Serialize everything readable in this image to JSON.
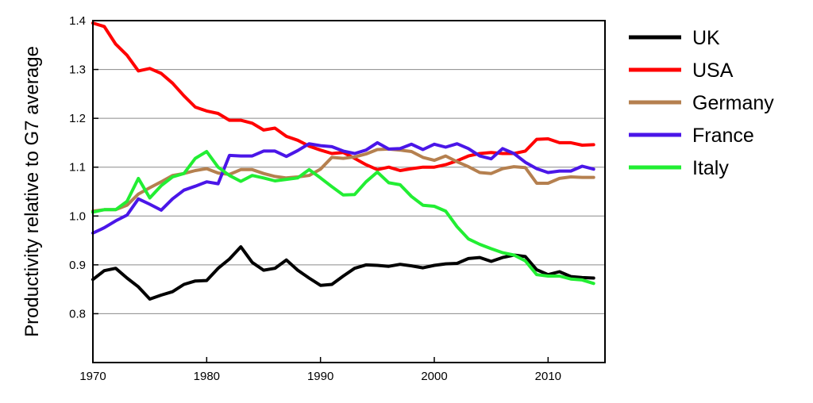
{
  "chart_data": {
    "type": "line",
    "xlabel": "",
    "ylabel": "Productivity relative to G7 average",
    "xlim": [
      1970,
      2015
    ],
    "ylim": [
      0.7,
      1.4
    ],
    "xticks": [
      "1970",
      "1980",
      "1990",
      "2000",
      "2010"
    ],
    "yticks": [
      "0.8",
      "0.9",
      "1.0",
      "1.1",
      "1.2",
      "1.3",
      "1.4"
    ],
    "grid": "horizontal",
    "legend": "right",
    "series": [
      {
        "name": "UK",
        "color": "#000000",
        "x": [
          1970,
          1971,
          1972,
          1973,
          1974,
          1975,
          1976,
          1977,
          1978,
          1979,
          1980,
          1981,
          1982,
          1983,
          1984,
          1985,
          1986,
          1987,
          1988,
          1989,
          1990,
          1991,
          1992,
          1993,
          1994,
          1995,
          1996,
          1997,
          1998,
          1999,
          2000,
          2001,
          2002,
          2003,
          2004,
          2005,
          2006,
          2007,
          2008,
          2009,
          2010,
          2011,
          2012,
          2013,
          2014
        ],
        "y": [
          0.87,
          0.888,
          0.893,
          0.873,
          0.855,
          0.83,
          0.838,
          0.845,
          0.86,
          0.867,
          0.868,
          0.893,
          0.912,
          0.937,
          0.905,
          0.889,
          0.893,
          0.91,
          0.889,
          0.873,
          0.858,
          0.86,
          0.877,
          0.893,
          0.9,
          0.899,
          0.897,
          0.901,
          0.898,
          0.894,
          0.899,
          0.902,
          0.903,
          0.913,
          0.915,
          0.907,
          0.915,
          0.92,
          0.917,
          0.89,
          0.88,
          0.886,
          0.876,
          0.874,
          0.873
        ]
      },
      {
        "name": "USA",
        "color": "#ff0000",
        "x": [
          1970,
          1971,
          1972,
          1973,
          1974,
          1975,
          1976,
          1977,
          1978,
          1979,
          1980,
          1981,
          1982,
          1983,
          1984,
          1985,
          1986,
          1987,
          1988,
          1989,
          1990,
          1991,
          1992,
          1993,
          1994,
          1995,
          1996,
          1997,
          1998,
          1999,
          2000,
          2001,
          2002,
          2003,
          2004,
          2005,
          2006,
          2007,
          2008,
          2009,
          2010,
          2011,
          2012,
          2013,
          2014
        ],
        "y": [
          1.395,
          1.388,
          1.352,
          1.329,
          1.297,
          1.302,
          1.292,
          1.272,
          1.246,
          1.223,
          1.215,
          1.21,
          1.196,
          1.196,
          1.19,
          1.176,
          1.18,
          1.163,
          1.155,
          1.143,
          1.135,
          1.128,
          1.13,
          1.118,
          1.105,
          1.095,
          1.1,
          1.093,
          1.097,
          1.1,
          1.1,
          1.105,
          1.113,
          1.123,
          1.128,
          1.13,
          1.128,
          1.128,
          1.133,
          1.157,
          1.158,
          1.15,
          1.15,
          1.145,
          1.146
        ]
      },
      {
        "name": "Germany",
        "color": "#b5804f",
        "x": [
          1970,
          1971,
          1972,
          1973,
          1974,
          1975,
          1976,
          1977,
          1978,
          1979,
          1980,
          1981,
          1982,
          1983,
          1984,
          1985,
          1986,
          1987,
          1988,
          1989,
          1990,
          1991,
          1992,
          1993,
          1994,
          1995,
          1996,
          1997,
          1998,
          1999,
          2000,
          2001,
          2002,
          2003,
          2004,
          2005,
          2006,
          2007,
          2008,
          2009,
          2010,
          2011,
          2012,
          2013,
          2014
        ],
        "y": [
          1.01,
          1.013,
          1.013,
          1.022,
          1.045,
          1.058,
          1.07,
          1.083,
          1.087,
          1.093,
          1.097,
          1.088,
          1.085,
          1.095,
          1.095,
          1.087,
          1.081,
          1.078,
          1.08,
          1.083,
          1.096,
          1.12,
          1.118,
          1.121,
          1.127,
          1.136,
          1.137,
          1.135,
          1.132,
          1.12,
          1.114,
          1.123,
          1.111,
          1.101,
          1.089,
          1.087,
          1.097,
          1.101,
          1.099,
          1.067,
          1.067,
          1.077,
          1.08,
          1.079,
          1.079
        ]
      },
      {
        "name": "France",
        "color": "#4a16e8",
        "x": [
          1970,
          1971,
          1972,
          1973,
          1974,
          1975,
          1976,
          1977,
          1978,
          1979,
          1980,
          1981,
          1982,
          1983,
          1984,
          1985,
          1986,
          1987,
          1988,
          1989,
          1990,
          1991,
          1992,
          1993,
          1994,
          1995,
          1996,
          1997,
          1998,
          1999,
          2000,
          2001,
          2002,
          2003,
          2004,
          2005,
          2006,
          2007,
          2008,
          2009,
          2010,
          2011,
          2012,
          2013,
          2014
        ],
        "y": [
          0.965,
          0.976,
          0.99,
          1.002,
          1.035,
          1.024,
          1.012,
          1.035,
          1.053,
          1.061,
          1.07,
          1.066,
          1.124,
          1.123,
          1.123,
          1.133,
          1.133,
          1.122,
          1.134,
          1.148,
          1.144,
          1.142,
          1.133,
          1.128,
          1.135,
          1.15,
          1.137,
          1.138,
          1.147,
          1.136,
          1.147,
          1.141,
          1.148,
          1.138,
          1.123,
          1.117,
          1.138,
          1.128,
          1.11,
          1.097,
          1.089,
          1.092,
          1.092,
          1.102,
          1.096
        ]
      },
      {
        "name": "Italy",
        "color": "#22ee33",
        "x": [
          1970,
          1971,
          1972,
          1973,
          1974,
          1975,
          1976,
          1977,
          1978,
          1979,
          1980,
          1981,
          1982,
          1983,
          1984,
          1985,
          1986,
          1987,
          1988,
          1989,
          1990,
          1991,
          1992,
          1993,
          1994,
          1995,
          1996,
          1997,
          1998,
          1999,
          2000,
          2001,
          2002,
          2003,
          2004,
          2005,
          2006,
          2007,
          2008,
          2009,
          2010,
          2011,
          2012,
          2013,
          2014
        ],
        "y": [
          1.008,
          1.013,
          1.013,
          1.03,
          1.077,
          1.037,
          1.062,
          1.08,
          1.087,
          1.118,
          1.132,
          1.1,
          1.083,
          1.071,
          1.083,
          1.078,
          1.072,
          1.075,
          1.078,
          1.095,
          1.078,
          1.06,
          1.043,
          1.044,
          1.07,
          1.09,
          1.068,
          1.064,
          1.04,
          1.022,
          1.02,
          1.01,
          0.978,
          0.953,
          0.942,
          0.933,
          0.925,
          0.92,
          0.908,
          0.88,
          0.877,
          0.877,
          0.871,
          0.869,
          0.862
        ]
      }
    ]
  }
}
